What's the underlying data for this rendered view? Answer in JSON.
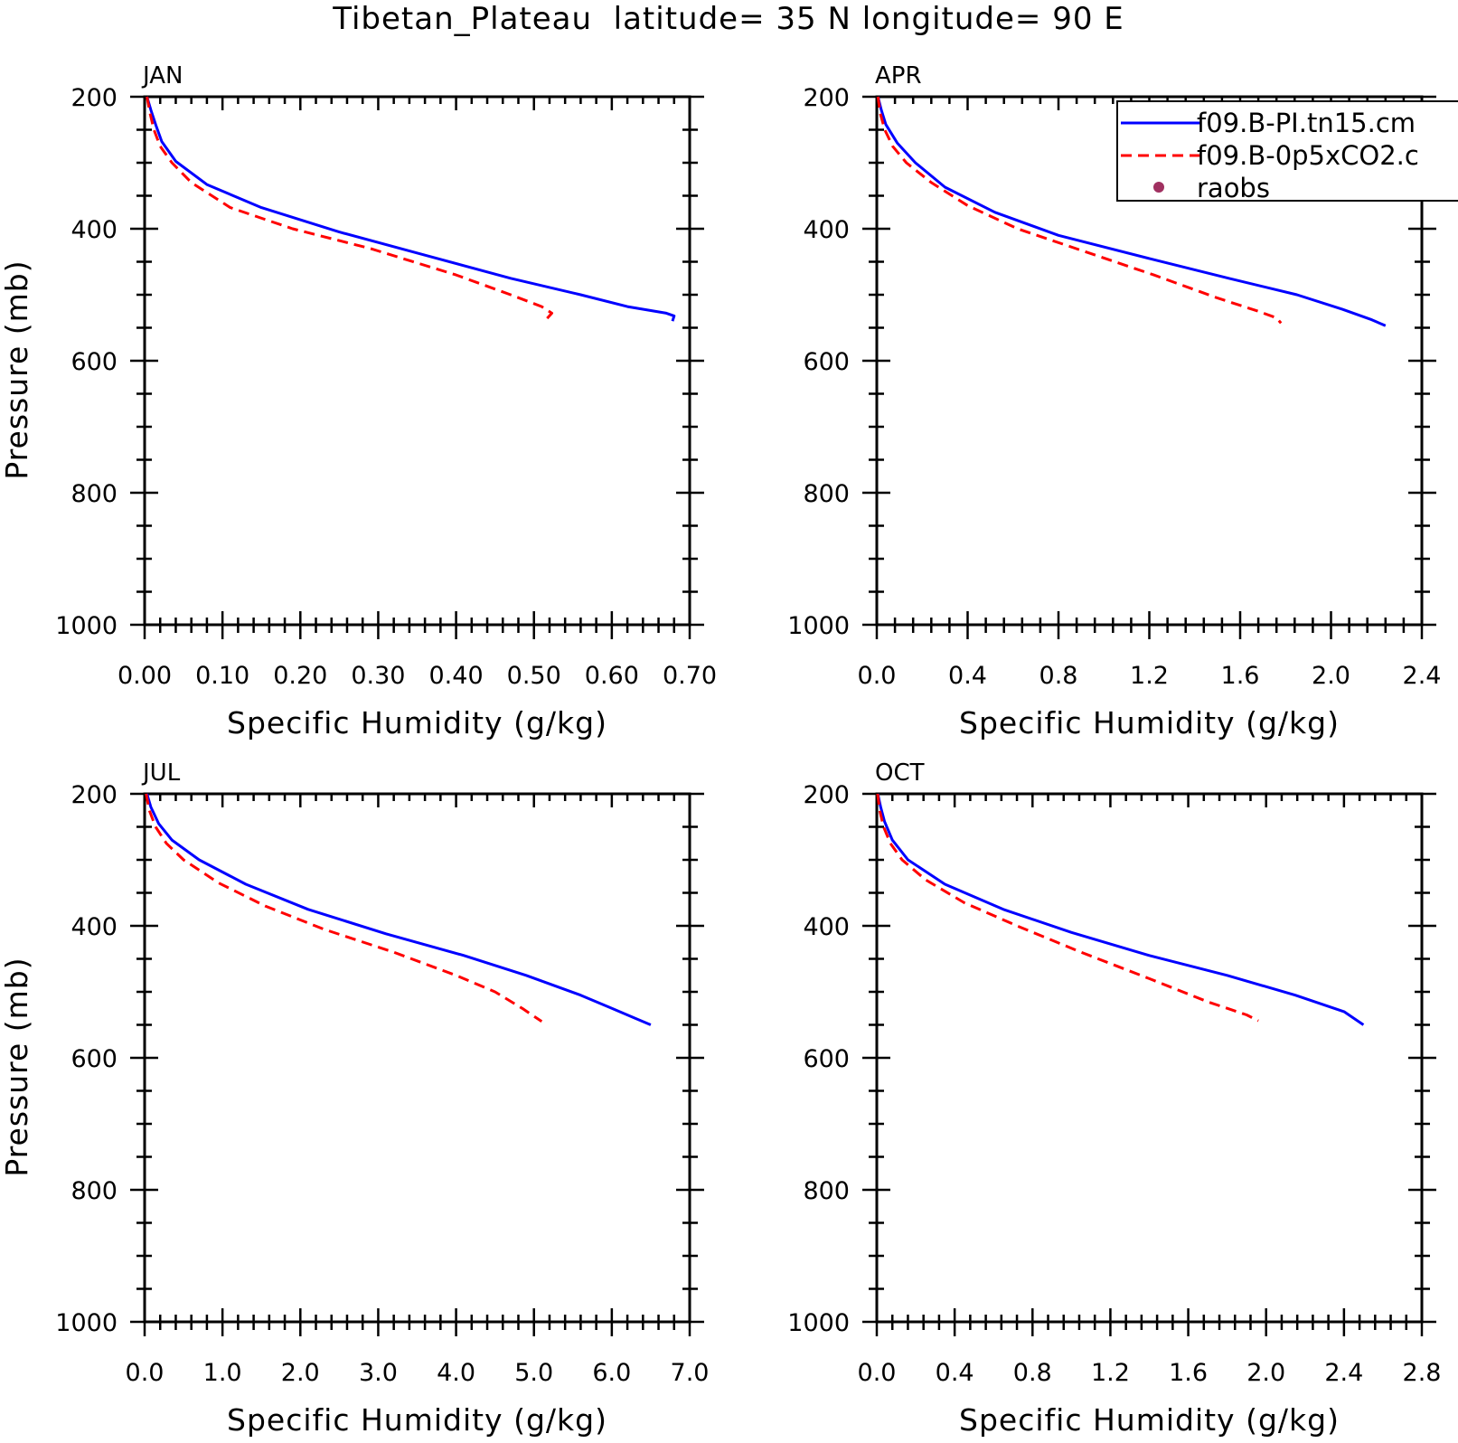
{
  "figure": {
    "title": "Tibetan_Plateau  latitude= 35 N longitude= 90 E"
  },
  "legend": {
    "entries": [
      {
        "label": "f09.B-PI.tn15.cm",
        "color": "#0000ff",
        "style": "solid"
      },
      {
        "label": "f09.B-0p5xCO2.c",
        "color": "#ff0000",
        "style": "dashed"
      },
      {
        "label": "raobs",
        "color": "#a03060",
        "style": "marker"
      }
    ]
  },
  "chart_data": [
    {
      "type": "line",
      "panel_label": "JAN",
      "xlabel": "Specific Humidity (g/kg)",
      "ylabel": "Pressure (mb)",
      "xlim": [
        0,
        0.7
      ],
      "ylim": [
        200,
        1000
      ],
      "y_inverted": true,
      "xticks": [
        "0.00",
        "0.10",
        "0.20",
        "0.30",
        "0.40",
        "0.50",
        "0.60",
        "0.70"
      ],
      "yticks": [
        "200",
        "400",
        "600",
        "800",
        "1000"
      ],
      "series": [
        {
          "name": "f09.B-PI.tn15.cm",
          "color": "#0000ff",
          "dash": "",
          "x": [
            0.003,
            0.008,
            0.015,
            0.022,
            0.04,
            0.08,
            0.15,
            0.25,
            0.36,
            0.47,
            0.56,
            0.62,
            0.67,
            0.68,
            0.678
          ],
          "y": [
            200,
            220,
            245,
            268,
            298,
            333,
            368,
            405,
            440,
            475,
            500,
            518,
            528,
            532,
            540
          ]
        },
        {
          "name": "f09.B-0p5xCO2.c",
          "color": "#ff0000",
          "dash": "12 7",
          "x": [
            0.003,
            0.007,
            0.012,
            0.02,
            0.035,
            0.06,
            0.11,
            0.19,
            0.29,
            0.4,
            0.47,
            0.51,
            0.523,
            0.516
          ],
          "y": [
            200,
            225,
            250,
            275,
            300,
            330,
            368,
            400,
            430,
            470,
            500,
            518,
            528,
            537
          ]
        }
      ]
    },
    {
      "type": "line",
      "panel_label": "APR",
      "xlabel": "Specific Humidity (g/kg)",
      "ylabel": "",
      "xlim": [
        0,
        2.4
      ],
      "ylim": [
        200,
        1000
      ],
      "y_inverted": true,
      "xticks": [
        "0.0",
        "0.4",
        "0.8",
        "1.2",
        "1.6",
        "2.0",
        "2.4"
      ],
      "yticks": [
        "200",
        "400",
        "600",
        "800",
        "1000"
      ],
      "series": [
        {
          "name": "f09.B-PI.tn15.cm",
          "color": "#0000ff",
          "dash": "",
          "x": [
            0.005,
            0.02,
            0.04,
            0.09,
            0.17,
            0.3,
            0.52,
            0.8,
            1.2,
            1.55,
            1.85,
            2.05,
            2.18,
            2.24
          ],
          "y": [
            200,
            220,
            242,
            270,
            300,
            337,
            375,
            410,
            445,
            475,
            500,
            522,
            538,
            547
          ]
        },
        {
          "name": "f09.B-0p5xCO2.c",
          "color": "#ff0000",
          "dash": "12 7",
          "x": [
            0.005,
            0.015,
            0.035,
            0.07,
            0.13,
            0.24,
            0.4,
            0.62,
            0.92,
            1.22,
            1.5,
            1.68,
            1.76,
            1.78
          ],
          "y": [
            200,
            225,
            250,
            275,
            300,
            330,
            365,
            400,
            435,
            470,
            505,
            525,
            535,
            543
          ]
        }
      ]
    },
    {
      "type": "line",
      "panel_label": "JUL",
      "xlabel": "Specific Humidity (g/kg)",
      "ylabel": "Pressure (mb)",
      "xlim": [
        0,
        7.0
      ],
      "ylim": [
        200,
        1000
      ],
      "y_inverted": true,
      "xticks": [
        "0.0",
        "1.0",
        "2.0",
        "3.0",
        "4.0",
        "5.0",
        "6.0",
        "7.0"
      ],
      "yticks": [
        "200",
        "400",
        "600",
        "800",
        "1000"
      ],
      "series": [
        {
          "name": "f09.B-PI.tn15.cm",
          "color": "#0000ff",
          "dash": "",
          "x": [
            0.03,
            0.08,
            0.18,
            0.35,
            0.7,
            1.3,
            2.1,
            3.1,
            4.1,
            4.9,
            5.6,
            6.0,
            6.3,
            6.5
          ],
          "y": [
            200,
            220,
            245,
            270,
            300,
            337,
            375,
            412,
            445,
            475,
            505,
            525,
            540,
            550
          ]
        },
        {
          "name": "f09.B-0p5xCO2.c",
          "color": "#ff0000",
          "dash": "12 7",
          "x": [
            0.02,
            0.06,
            0.14,
            0.28,
            0.5,
            0.95,
            1.55,
            2.3,
            3.2,
            4.0,
            4.5,
            4.85,
            5.1
          ],
          "y": [
            200,
            225,
            250,
            275,
            300,
            335,
            370,
            405,
            440,
            475,
            500,
            525,
            545
          ]
        }
      ]
    },
    {
      "type": "line",
      "panel_label": "OCT",
      "xlabel": "Specific Humidity (g/kg)",
      "ylabel": "",
      "xlim": [
        0,
        2.8
      ],
      "ylim": [
        200,
        1000
      ],
      "y_inverted": true,
      "xticks": [
        "0.0",
        "0.4",
        "0.8",
        "1.2",
        "1.6",
        "2.0",
        "2.4",
        "2.8"
      ],
      "yticks": [
        "200",
        "400",
        "600",
        "800",
        "1000"
      ],
      "series": [
        {
          "name": "f09.B-PI.tn15.cm",
          "color": "#0000ff",
          "dash": "",
          "x": [
            0.005,
            0.02,
            0.04,
            0.08,
            0.16,
            0.35,
            0.65,
            1.0,
            1.4,
            1.8,
            2.15,
            2.4,
            2.5
          ],
          "y": [
            200,
            220,
            242,
            270,
            300,
            337,
            375,
            410,
            445,
            475,
            505,
            530,
            550
          ]
        },
        {
          "name": "f09.B-0p5xCO2.c",
          "color": "#ff0000",
          "dash": "12 7",
          "x": [
            0.004,
            0.015,
            0.035,
            0.07,
            0.13,
            0.25,
            0.45,
            0.72,
            1.05,
            1.4,
            1.7,
            1.9,
            1.96
          ],
          "y": [
            200,
            225,
            250,
            275,
            300,
            330,
            365,
            400,
            440,
            480,
            515,
            535,
            544
          ]
        }
      ]
    }
  ]
}
